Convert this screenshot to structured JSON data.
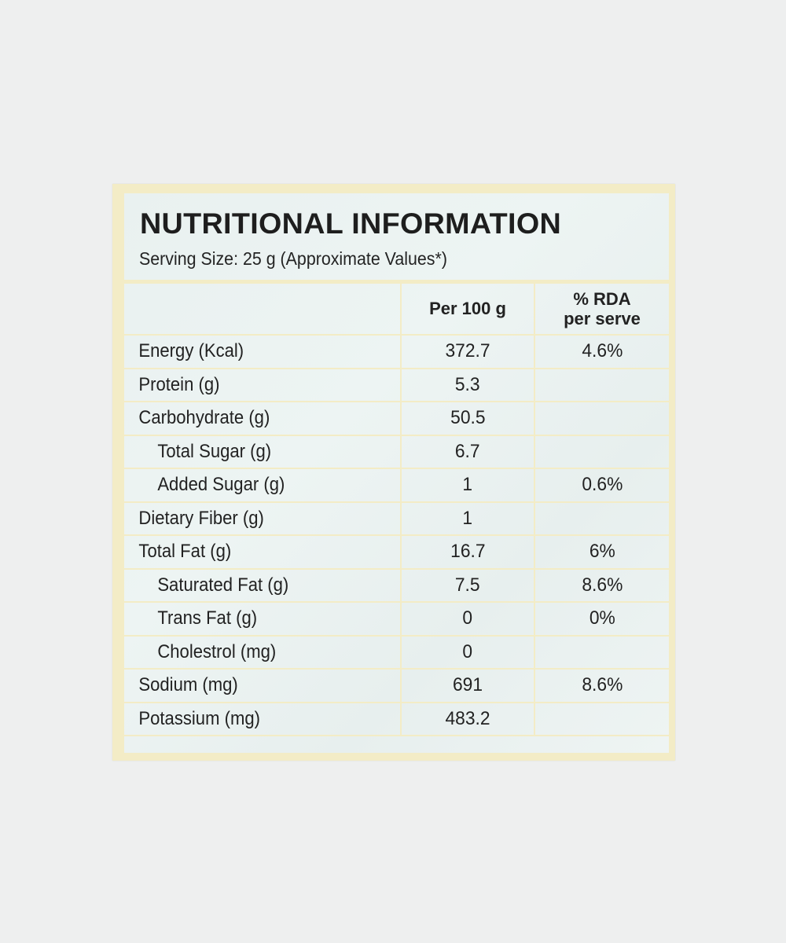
{
  "label": {
    "title": "NUTRITIONAL INFORMATION",
    "subtitle": "Serving Size: 25 g (Approximate Values*)",
    "columns": {
      "per100": "Per 100 g",
      "rda_line1": "% RDA",
      "rda_line2": "per serve"
    },
    "rows": [
      {
        "name": "Energy (Kcal)",
        "per100": "372.7",
        "rda": "4.6%",
        "indent": false
      },
      {
        "name": "Protein (g)",
        "per100": "5.3",
        "rda": "",
        "indent": false
      },
      {
        "name": "Carbohydrate (g)",
        "per100": "50.5",
        "rda": "",
        "indent": false
      },
      {
        "name": "Total Sugar (g)",
        "per100": "6.7",
        "rda": "",
        "indent": true
      },
      {
        "name": "Added Sugar (g)",
        "per100": "1",
        "rda": "0.6%",
        "indent": true
      },
      {
        "name": "Dietary Fiber (g)",
        "per100": "1",
        "rda": "",
        "indent": false
      },
      {
        "name": "Total Fat (g)",
        "per100": "16.7",
        "rda": "6%",
        "indent": false
      },
      {
        "name": "Saturated Fat (g)",
        "per100": "7.5",
        "rda": "8.6%",
        "indent": true
      },
      {
        "name": "Trans Fat (g)",
        "per100": "0",
        "rda": "0%",
        "indent": true
      },
      {
        "name": "Cholestrol (mg)",
        "per100": "0",
        "rda": "",
        "indent": true
      },
      {
        "name": "Sodium (mg)",
        "per100": "691",
        "rda": "8.6%",
        "indent": false
      },
      {
        "name": "Potassium (mg)",
        "per100": "483.2",
        "rda": "",
        "indent": false
      }
    ]
  },
  "colors": {
    "background": "#eeefef",
    "label_border": "#f3ecc6",
    "label_fill": "#e9f1f0",
    "text": "#222222"
  }
}
